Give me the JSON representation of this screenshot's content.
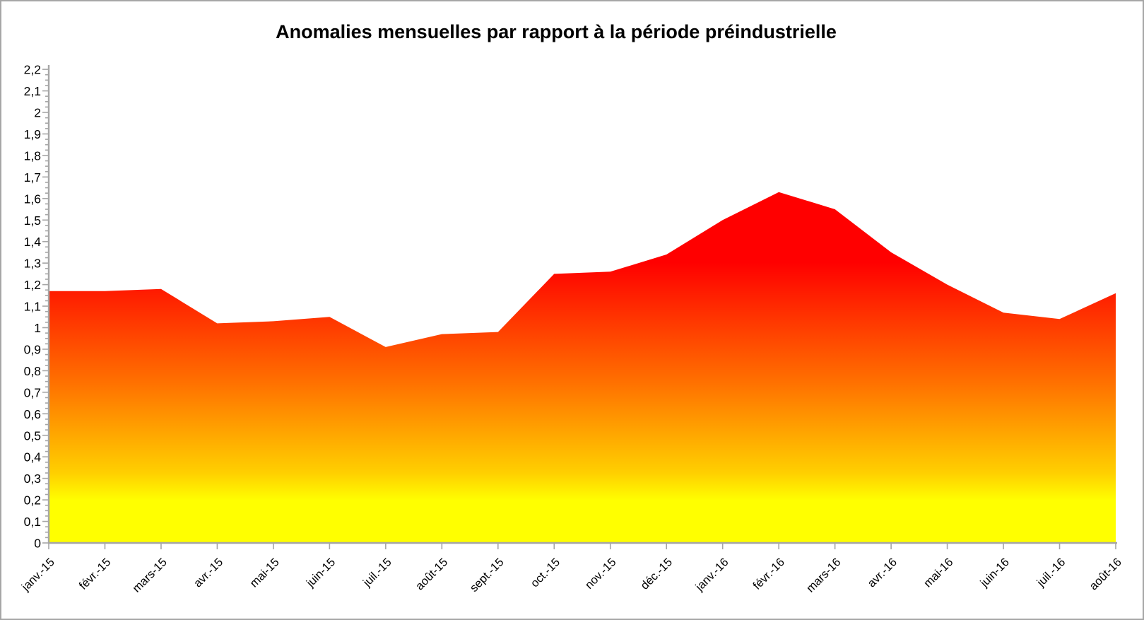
{
  "chart_data": {
    "type": "area",
    "title": "Anomalies mensuelles par rapport à la période préindustrielle",
    "categories": [
      "janv.-15",
      "févr.-15",
      "mars-15",
      "avr.-15",
      "mai-15",
      "juin-15",
      "juil.-15",
      "août-15",
      "sept.-15",
      "oct.-15",
      "nov.-15",
      "déc.-15",
      "janv.-16",
      "févr.-16",
      "mars-16",
      "avr.-16",
      "mai-16",
      "juin-16",
      "juil.-16",
      "août-16"
    ],
    "values": [
      1.17,
      1.17,
      1.18,
      1.02,
      1.03,
      1.05,
      0.91,
      0.97,
      0.98,
      1.25,
      1.26,
      1.34,
      1.5,
      1.63,
      1.55,
      1.35,
      1.2,
      1.07,
      1.04,
      1.16
    ],
    "xlabel": "",
    "ylabel": "",
    "ylim": [
      0,
      2.2
    ],
    "ytick_step": 0.1,
    "ytick_minor_step": 0.025,
    "ytick_labels": [
      "0",
      "0,1",
      "0,2",
      "0,3",
      "0,4",
      "0,5",
      "0,6",
      "0,7",
      "0,8",
      "0,9",
      "1",
      "1,1",
      "1,2",
      "1,3",
      "1,4",
      "1,5",
      "1,6",
      "1,7",
      "1,8",
      "1,9",
      "2",
      "2,1",
      "2,2"
    ],
    "decimal_separator": ",",
    "grid": false,
    "legend": "none",
    "x_label_rotation_deg": -45,
    "colors": {
      "gradient_top": "#FF0000",
      "gradient_mid": "#FF7300",
      "gradient_low": "#FFCF00",
      "gradient_bottom": "#FFFF00",
      "axis": "#A6A6A6",
      "text": "#000000",
      "background": "#FFFFFF"
    }
  }
}
